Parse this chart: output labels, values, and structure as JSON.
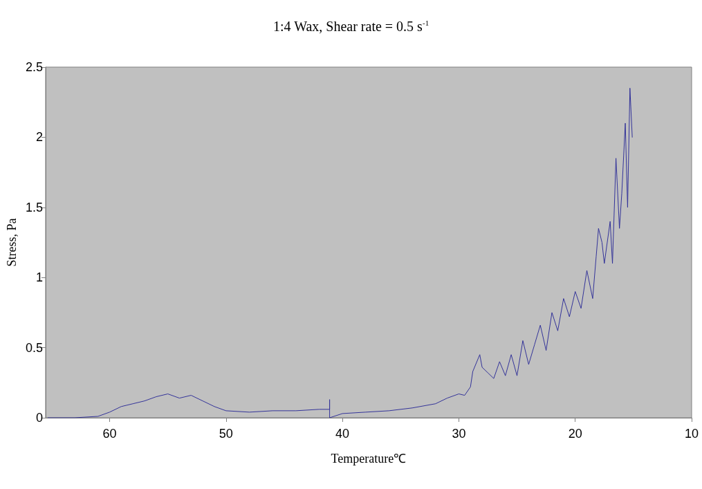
{
  "chart_data": {
    "type": "line",
    "title": "1:4 Wax, Shear rate = 0.5 s$^{-1}$",
    "xlabel": "Temperature℃",
    "ylabel": "Stress, Pa",
    "xlim": [
      65.5,
      10
    ],
    "xticks": [
      60,
      50,
      40,
      30,
      20,
      10
    ],
    "ylim": [
      0,
      2.5
    ],
    "yticks": [
      0,
      0.5,
      1,
      1.5,
      2,
      2.5
    ],
    "grid": false,
    "marker": "none",
    "line_style": "solid",
    "series": [
      {
        "color": "#333399",
        "x": [
          65.3,
          63,
          61,
          60,
          59,
          58,
          57,
          56,
          55,
          54,
          53,
          52,
          51,
          50,
          48,
          46,
          44,
          42,
          41.1,
          41.1,
          41.1,
          40,
          38,
          36,
          34,
          32,
          31,
          30,
          29.5,
          29,
          28.8,
          28.2,
          28,
          27.5,
          27,
          26.5,
          26,
          25.5,
          25,
          24.5,
          24,
          23.5,
          23,
          22.5,
          22,
          21.5,
          21,
          20.5,
          20,
          19.5,
          19,
          18.5,
          18.2,
          18,
          17.7,
          17.5,
          17,
          16.8,
          16.5,
          16.2,
          16,
          15.7,
          15.5,
          15.3,
          15.1
        ],
        "values": [
          0,
          0,
          0.01,
          0.04,
          0.08,
          0.1,
          0.12,
          0.15,
          0.17,
          0.14,
          0.16,
          0.12,
          0.08,
          0.05,
          0.04,
          0.05,
          0.05,
          0.06,
          0.06,
          0.13,
          0,
          0.03,
          0.04,
          0.05,
          0.07,
          0.1,
          0.14,
          0.17,
          0.16,
          0.22,
          0.33,
          0.45,
          0.36,
          0.32,
          0.28,
          0.4,
          0.3,
          0.45,
          0.3,
          0.55,
          0.38,
          0.52,
          0.66,
          0.48,
          0.75,
          0.62,
          0.85,
          0.72,
          0.9,
          0.78,
          1.05,
          0.85,
          1.15,
          1.35,
          1.25,
          1.1,
          1.4,
          1.1,
          1.85,
          1.35,
          1.6,
          2.1,
          1.5,
          2.35,
          2.0
        ]
      }
    ]
  }
}
